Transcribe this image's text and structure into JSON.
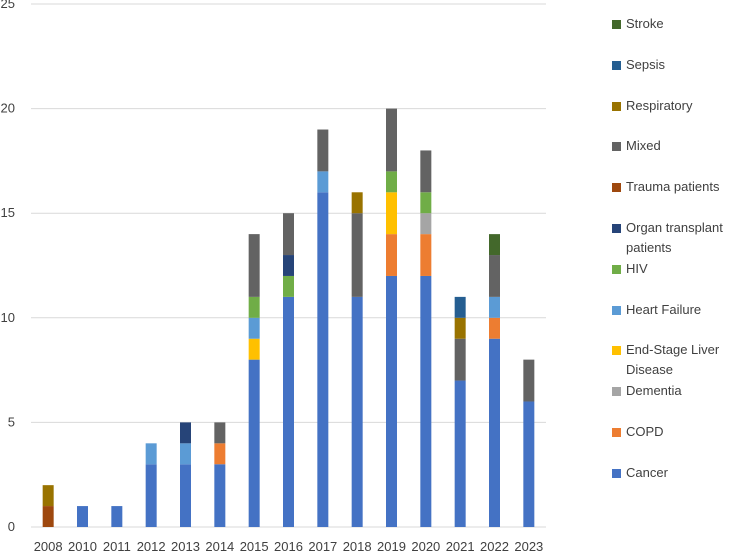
{
  "chart_data": {
    "type": "bar",
    "stacked": true,
    "categories": [
      "2008",
      "2010",
      "2011",
      "2012",
      "2013",
      "2014",
      "2015",
      "2016",
      "2017",
      "2018",
      "2019",
      "2020",
      "2021",
      "2022",
      "2023"
    ],
    "ylim": [
      0,
      25
    ],
    "yticks": [
      0,
      5,
      10,
      15,
      20,
      25
    ],
    "grid": true,
    "legend_position": "right",
    "series": [
      {
        "name": "Cancer",
        "color": "#4472c4",
        "values": [
          0,
          1,
          1,
          3,
          3,
          3,
          8,
          11,
          16,
          11,
          12,
          12,
          7,
          9,
          6
        ]
      },
      {
        "name": "COPD",
        "color": "#ed7d31",
        "values": [
          0,
          0,
          0,
          0,
          0,
          1,
          0,
          0,
          0,
          0,
          2,
          2,
          0,
          1,
          0
        ]
      },
      {
        "name": "Dementia",
        "color": "#a5a5a5",
        "values": [
          0,
          0,
          0,
          0,
          0,
          0,
          0,
          0,
          0,
          0,
          0,
          1,
          0,
          0,
          0
        ]
      },
      {
        "name": "End-Stage Liver Disease",
        "color": "#ffc000",
        "values": [
          0,
          0,
          0,
          0,
          0,
          0,
          1,
          0,
          0,
          0,
          2,
          0,
          0,
          0,
          0
        ]
      },
      {
        "name": "Heart Failure",
        "color": "#5b9bd5",
        "values": [
          0,
          0,
          0,
          1,
          1,
          0,
          1,
          0,
          1,
          0,
          0,
          0,
          0,
          1,
          0
        ]
      },
      {
        "name": "HIV",
        "color": "#70ad47",
        "values": [
          0,
          0,
          0,
          0,
          0,
          0,
          1,
          1,
          0,
          0,
          1,
          1,
          0,
          0,
          0
        ]
      },
      {
        "name": "Organ transplant patients",
        "color": "#264478",
        "values": [
          0,
          0,
          0,
          0,
          1,
          0,
          0,
          1,
          0,
          0,
          0,
          0,
          0,
          0,
          0
        ]
      },
      {
        "name": "Trauma patients",
        "color": "#9e480e",
        "values": [
          1,
          0,
          0,
          0,
          0,
          0,
          0,
          0,
          0,
          0,
          0,
          0,
          0,
          0,
          0
        ]
      },
      {
        "name": "Mixed",
        "color": "#636363",
        "values": [
          0,
          0,
          0,
          0,
          0,
          1,
          3,
          2,
          2,
          4,
          3,
          2,
          2,
          2,
          2
        ]
      },
      {
        "name": "Respiratory",
        "color": "#997300",
        "values": [
          1,
          0,
          0,
          0,
          0,
          0,
          0,
          0,
          0,
          1,
          0,
          0,
          1,
          0,
          0
        ]
      },
      {
        "name": "Sepsis",
        "color": "#255e91",
        "values": [
          0,
          0,
          0,
          0,
          0,
          0,
          0,
          0,
          0,
          0,
          0,
          0,
          1,
          0,
          0
        ]
      },
      {
        "name": "Stroke",
        "color": "#43682b",
        "values": [
          0,
          0,
          0,
          0,
          0,
          0,
          0,
          0,
          0,
          0,
          0,
          0,
          0,
          1,
          0
        ]
      }
    ]
  }
}
